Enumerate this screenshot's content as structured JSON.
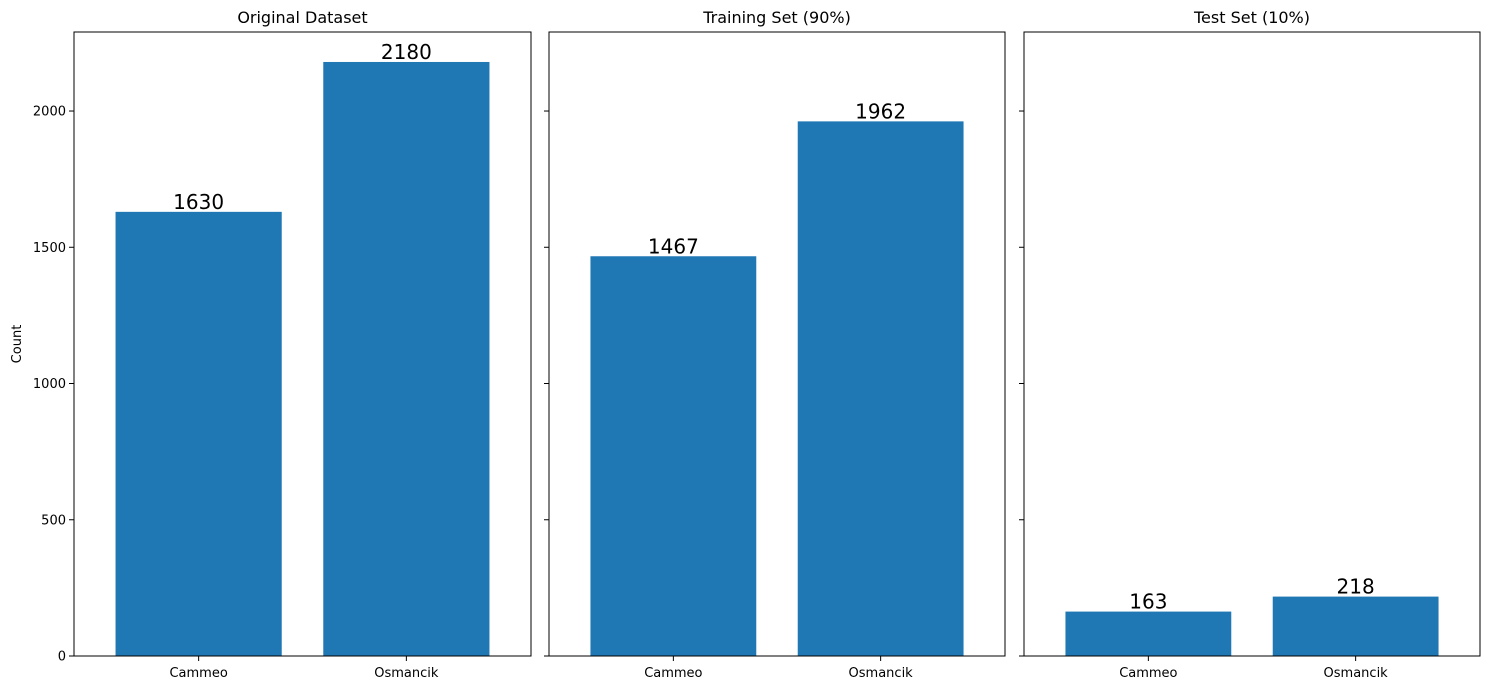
{
  "bar_color": "#1f77b4",
  "chart_data": [
    {
      "type": "bar",
      "title": "Original Dataset",
      "categories": [
        "Cammeo",
        "Osmancik"
      ],
      "values": [
        1630,
        2180
      ],
      "ylabel": "Count",
      "ylim": [
        0,
        2290
      ],
      "yticks": [
        0,
        500,
        1000,
        1500,
        2000
      ],
      "show_ytick_labels": true,
      "grid": false
    },
    {
      "type": "bar",
      "title": "Training Set (90%)",
      "categories": [
        "Cammeo",
        "Osmancik"
      ],
      "values": [
        1467,
        1962
      ],
      "ylabel": "",
      "ylim": [
        0,
        2290
      ],
      "yticks": [
        0,
        500,
        1000,
        1500,
        2000
      ],
      "show_ytick_labels": false,
      "grid": false
    },
    {
      "type": "bar",
      "title": "Test Set (10%)",
      "categories": [
        "Cammeo",
        "Osmancik"
      ],
      "values": [
        163,
        218
      ],
      "ylabel": "",
      "ylim": [
        0,
        2290
      ],
      "yticks": [
        0,
        500,
        1000,
        1500,
        2000
      ],
      "show_ytick_labels": false,
      "grid": false
    }
  ]
}
